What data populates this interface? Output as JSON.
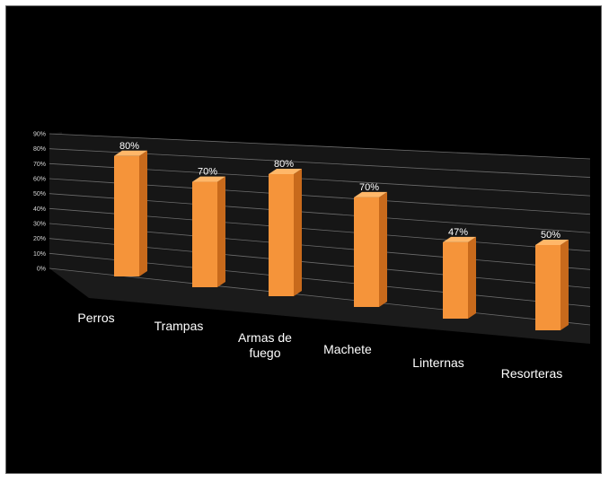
{
  "chart_data": {
    "type": "bar",
    "three_d": true,
    "categories": [
      [
        "Perros"
      ],
      [
        "Trampas"
      ],
      [
        "Armas de",
        "fuego"
      ],
      [
        "Machete"
      ],
      [
        "Linternas"
      ],
      [
        "Resorteras"
      ]
    ],
    "values": [
      80,
      70,
      80,
      70,
      47,
      50
    ],
    "data_labels": [
      "80%",
      "70%",
      "80%",
      "70%",
      "47%",
      "50%"
    ],
    "y_ticks": [
      "0%",
      "10%",
      "20%",
      "30%",
      "40%",
      "50%",
      "60%",
      "70%",
      "80%",
      "90%"
    ],
    "ylim": [
      0,
      90
    ],
    "grid": true,
    "legend": "none",
    "title": "",
    "xlabel": "",
    "ylabel": "",
    "colors": {
      "background": "#000000",
      "bar_front": "#f5943a",
      "bar_side": "#c86a1c",
      "bar_top": "#ffb769",
      "back_wall": "#161616",
      "side_wall": "#101010",
      "floor": "#1b1b1b",
      "gridline": "#6c6c6c",
      "text": "#ffffff"
    }
  }
}
